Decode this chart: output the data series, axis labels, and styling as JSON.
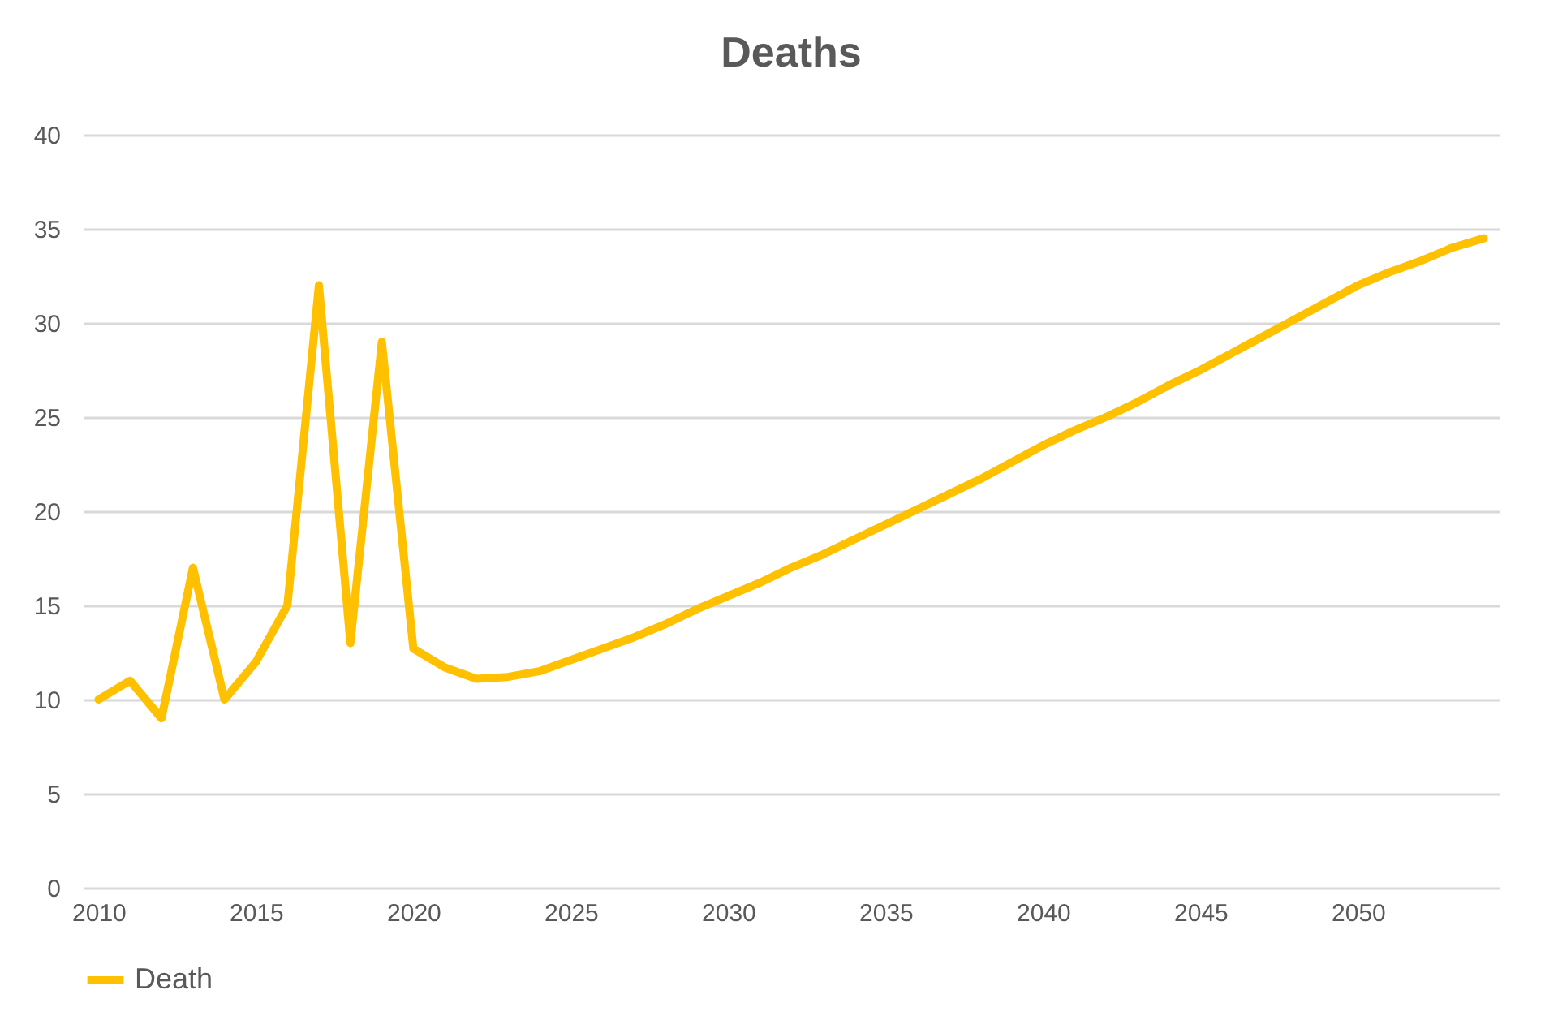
{
  "chart_data": {
    "type": "line",
    "title": "Deaths",
    "x": [
      2010,
      2011,
      2012,
      2013,
      2014,
      2015,
      2016,
      2017,
      2018,
      2019,
      2020,
      2021,
      2022,
      2023,
      2024,
      2025,
      2026,
      2027,
      2028,
      2029,
      2030,
      2031,
      2032,
      2033,
      2034,
      2035,
      2036,
      2037,
      2038,
      2039,
      2040,
      2041,
      2042,
      2043,
      2044,
      2045,
      2046,
      2047,
      2048,
      2049,
      2050,
      2051,
      2052,
      2053,
      2054
    ],
    "series": [
      {
        "name": "Death",
        "color": "#ffc000",
        "values": [
          10,
          11,
          9,
          17,
          10,
          12,
          15,
          32,
          13,
          29,
          12.7,
          11.7,
          11.1,
          11.2,
          11.5,
          12.1,
          12.7,
          13.3,
          14,
          14.8,
          15.5,
          16.2,
          17,
          17.7,
          18.5,
          19.3,
          20.1,
          20.9,
          21.7,
          22.6,
          23.5,
          24.3,
          25,
          25.8,
          26.7,
          27.5,
          28.4,
          29.3,
          30.2,
          31.1,
          32,
          32.7,
          33.3,
          34,
          34.5
        ]
      }
    ],
    "xlim": [
      2009.5,
      2054.5
    ],
    "xticks": [
      2010,
      2015,
      2020,
      2025,
      2030,
      2035,
      2040,
      2045,
      2050
    ],
    "ylim": [
      0,
      40
    ],
    "yticks": [
      0,
      5,
      10,
      15,
      20,
      25,
      30,
      35,
      40
    ],
    "grid": "y",
    "legend": "bottom",
    "marker": "none",
    "line_style": "solid"
  }
}
